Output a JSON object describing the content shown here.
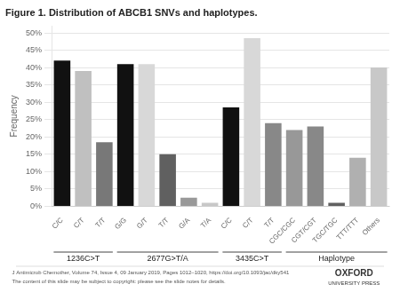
{
  "chart_data": {
    "type": "bar",
    "title": "Figure 1. Distribution of ABCB1 SNVs and haplotypes.",
    "y_label": "Frequency",
    "categories": [
      "C/C",
      "C/T",
      "T/T",
      "G/G",
      "G/T",
      "T/T",
      "G/A",
      "T/A",
      "C/C",
      "C/T",
      "T/T",
      "CGC/CGC",
      "CGT/CGT",
      "TGC/TGC",
      "TTT/TTT",
      "Others"
    ],
    "groups": [
      "1236C>T",
      "1236C>T",
      "1236C>T",
      "2677G>T/A",
      "2677G>T/A",
      "2677G>T/A",
      "2677G>T/A",
      "2677G>T/A",
      "3435C>T",
      "3435C>T",
      "3435C>T",
      "Haplotype",
      "Haplotype",
      "Haplotype",
      "Haplotype",
      "Haplotype"
    ],
    "values": [
      0.42,
      0.39,
      0.185,
      0.41,
      0.41,
      0.15,
      0.025,
      0.01,
      0.285,
      0.485,
      0.24,
      0.22,
      0.23,
      0.01,
      0.14,
      0.4
    ],
    "colors": [
      "#111111",
      "#c0c0c0",
      "#787878",
      "#111111",
      "#d8d8d8",
      "#606060",
      "#999999",
      "#c8c8c8",
      "#111111",
      "#d8d8d8",
      "#888888",
      "#989898",
      "#888888",
      "#606060",
      "#b0b0b0",
      "#c8c8c8"
    ],
    "ylim": [
      0,
      0.52
    ],
    "yticks": [
      {
        "value": 0.0,
        "label": "0%"
      },
      {
        "value": 0.05,
        "label": "5%"
      },
      {
        "value": 0.1,
        "label": "10%"
      },
      {
        "value": 0.15,
        "label": "15%"
      },
      {
        "value": 0.2,
        "label": "20%"
      },
      {
        "value": 0.25,
        "label": "25%"
      },
      {
        "value": 0.3,
        "label": "30%"
      },
      {
        "value": 0.35,
        "label": "35%"
      },
      {
        "value": 0.4,
        "label": "40%"
      },
      {
        "value": 0.45,
        "label": "45%"
      },
      {
        "value": 0.5,
        "label": "50%"
      }
    ],
    "grid": true,
    "annotations": [
      "J Antimicrob Chemother, Volume 74, Issue 4, 09 January 2019, Pages 1012–1020, https://doi.org/10.1093/jac/dky541",
      "The content of this slide may be subject to copyright: please see the slide notes for details.",
      "OXFORD",
      "UNIVERSITY PRESS"
    ]
  }
}
